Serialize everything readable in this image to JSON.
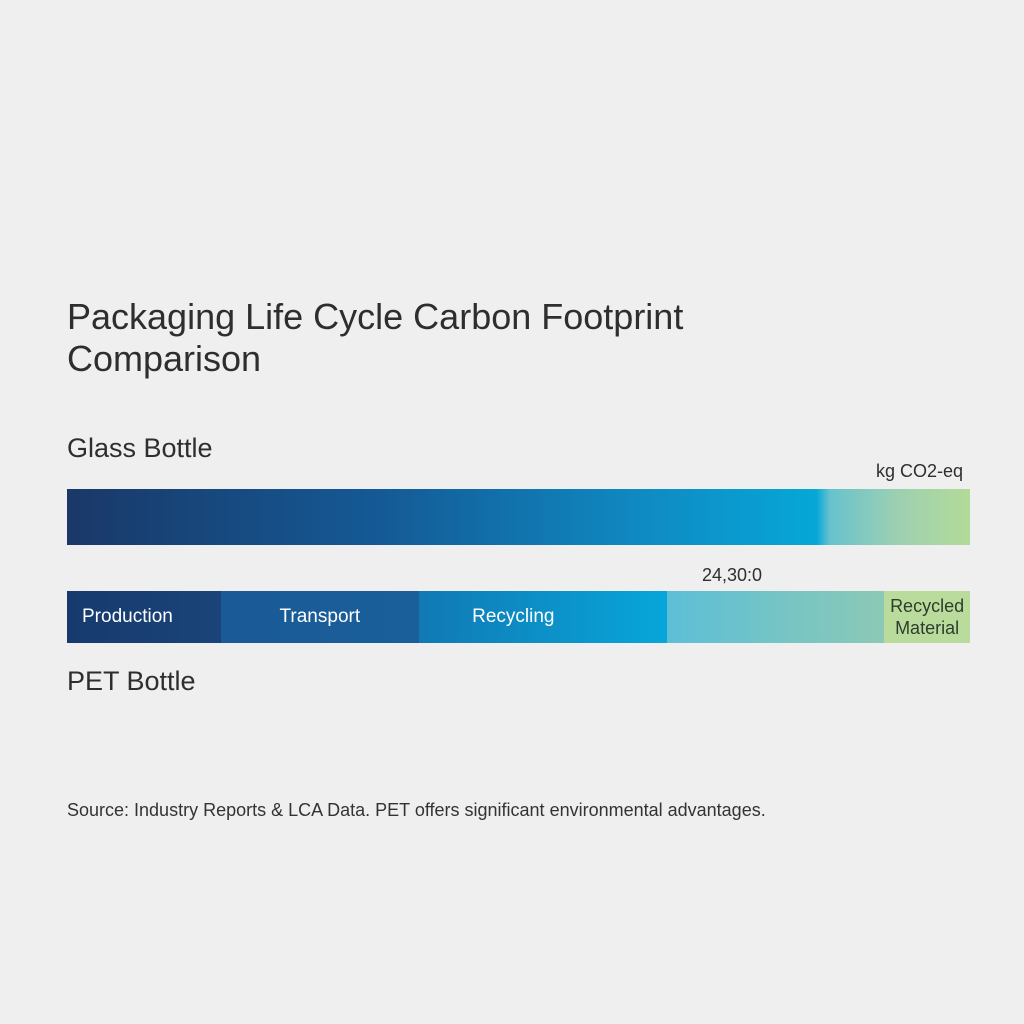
{
  "chart_data": {
    "type": "bar",
    "title": "Packaging Life Cycle Carbon Footprint Comparison",
    "unit_label": "kg CO2-eq",
    "value_label": "24,30:0",
    "series": [
      {
        "name": "Glass Bottle",
        "segments": [
          {
            "label": "",
            "value": 0.835,
            "color": "#145a96"
          },
          {
            "label": "",
            "value": 0.165,
            "color": "#9dd0b2"
          }
        ]
      },
      {
        "name": "PET Bottle",
        "segments": [
          {
            "label": "Production",
            "value": 0.17,
            "color": "#163a6e"
          },
          {
            "label": "Transport",
            "value": 0.22,
            "color": "#1a5a96"
          },
          {
            "label": "Recycling",
            "value": 0.275,
            "color": "#0f8cc4"
          },
          {
            "label": "",
            "value": 0.24,
            "color": "#5cbfd6"
          },
          {
            "label": "Recycled Material",
            "value": 0.095,
            "color": "#b9dc9d"
          }
        ]
      }
    ],
    "source": "Source: Industry Reports & LCA Data. PET offers significant environmental advantages."
  }
}
